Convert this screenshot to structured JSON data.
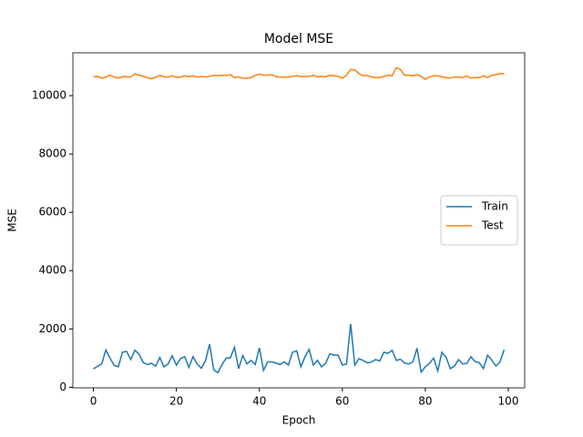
{
  "chart_data": {
    "type": "line",
    "title": "Model MSE",
    "xlabel": "Epoch",
    "ylabel": "MSE",
    "x": [
      0,
      1,
      2,
      3,
      4,
      5,
      6,
      7,
      8,
      9,
      10,
      11,
      12,
      13,
      14,
      15,
      16,
      17,
      18,
      19,
      20,
      21,
      22,
      23,
      24,
      25,
      26,
      27,
      28,
      29,
      30,
      31,
      32,
      33,
      34,
      35,
      36,
      37,
      38,
      39,
      40,
      41,
      42,
      43,
      44,
      45,
      46,
      47,
      48,
      49,
      50,
      51,
      52,
      53,
      54,
      55,
      56,
      57,
      58,
      59,
      60,
      61,
      62,
      63,
      64,
      65,
      66,
      67,
      68,
      69,
      70,
      71,
      72,
      73,
      74,
      75,
      76,
      77,
      78,
      79,
      80,
      81,
      82,
      83,
      84,
      85,
      86,
      87,
      88,
      89,
      90,
      91,
      92,
      93,
      94,
      95,
      96,
      97,
      98,
      99
    ],
    "series": [
      {
        "name": "Train",
        "color": "#1f77b4",
        "values": [
          630,
          720,
          800,
          1280,
          1000,
          750,
          700,
          1200,
          1230,
          950,
          1270,
          1130,
          850,
          780,
          820,
          720,
          1020,
          700,
          800,
          1080,
          760,
          980,
          1050,
          680,
          1050,
          800,
          650,
          900,
          1480,
          600,
          500,
          780,
          1000,
          1010,
          1370,
          640,
          1090,
          800,
          920,
          780,
          1350,
          580,
          870,
          870,
          830,
          780,
          870,
          760,
          1200,
          1250,
          700,
          1050,
          1300,
          760,
          920,
          700,
          830,
          1150,
          1100,
          1100,
          760,
          800,
          2170,
          760,
          980,
          920,
          840,
          860,
          950,
          900,
          1200,
          1160,
          1270,
          920,
          960,
          830,
          800,
          870,
          1340,
          520,
          700,
          820,
          1000,
          560,
          1200,
          1030,
          640,
          720,
          950,
          800,
          820,
          1050,
          880,
          840,
          640,
          1100,
          930,
          730,
          870,
          1290
        ]
      },
      {
        "name": "Test",
        "color": "#ff7f0e",
        "values": [
          10650,
          10660,
          10600,
          10640,
          10700,
          10640,
          10600,
          10650,
          10650,
          10640,
          10750,
          10700,
          10670,
          10620,
          10580,
          10630,
          10700,
          10650,
          10640,
          10680,
          10630,
          10640,
          10680,
          10650,
          10680,
          10640,
          10660,
          10640,
          10660,
          10700,
          10690,
          10700,
          10690,
          10720,
          10620,
          10640,
          10600,
          10600,
          10620,
          10700,
          10740,
          10700,
          10700,
          10720,
          10650,
          10640,
          10640,
          10640,
          10660,
          10690,
          10650,
          10650,
          10660,
          10700,
          10640,
          10660,
          10640,
          10700,
          10680,
          10660,
          10600,
          10700,
          10900,
          10880,
          10760,
          10680,
          10700,
          10640,
          10620,
          10620,
          10660,
          10700,
          10680,
          10960,
          10900,
          10700,
          10700,
          10680,
          10720,
          10660,
          10560,
          10640,
          10680,
          10680,
          10650,
          10620,
          10600,
          10640,
          10640,
          10620,
          10680,
          10600,
          10620,
          10620,
          10680,
          10620,
          10700,
          10720,
          10760,
          10750
        ]
      }
    ],
    "xlim": [
      -4.95,
      103.95
    ],
    "xticks": [
      0,
      20,
      40,
      60,
      80,
      100
    ],
    "ylim": [
      -20,
      11470
    ],
    "yticks": [
      0,
      2000,
      4000,
      6000,
      8000,
      10000
    ],
    "legend": "center right"
  }
}
